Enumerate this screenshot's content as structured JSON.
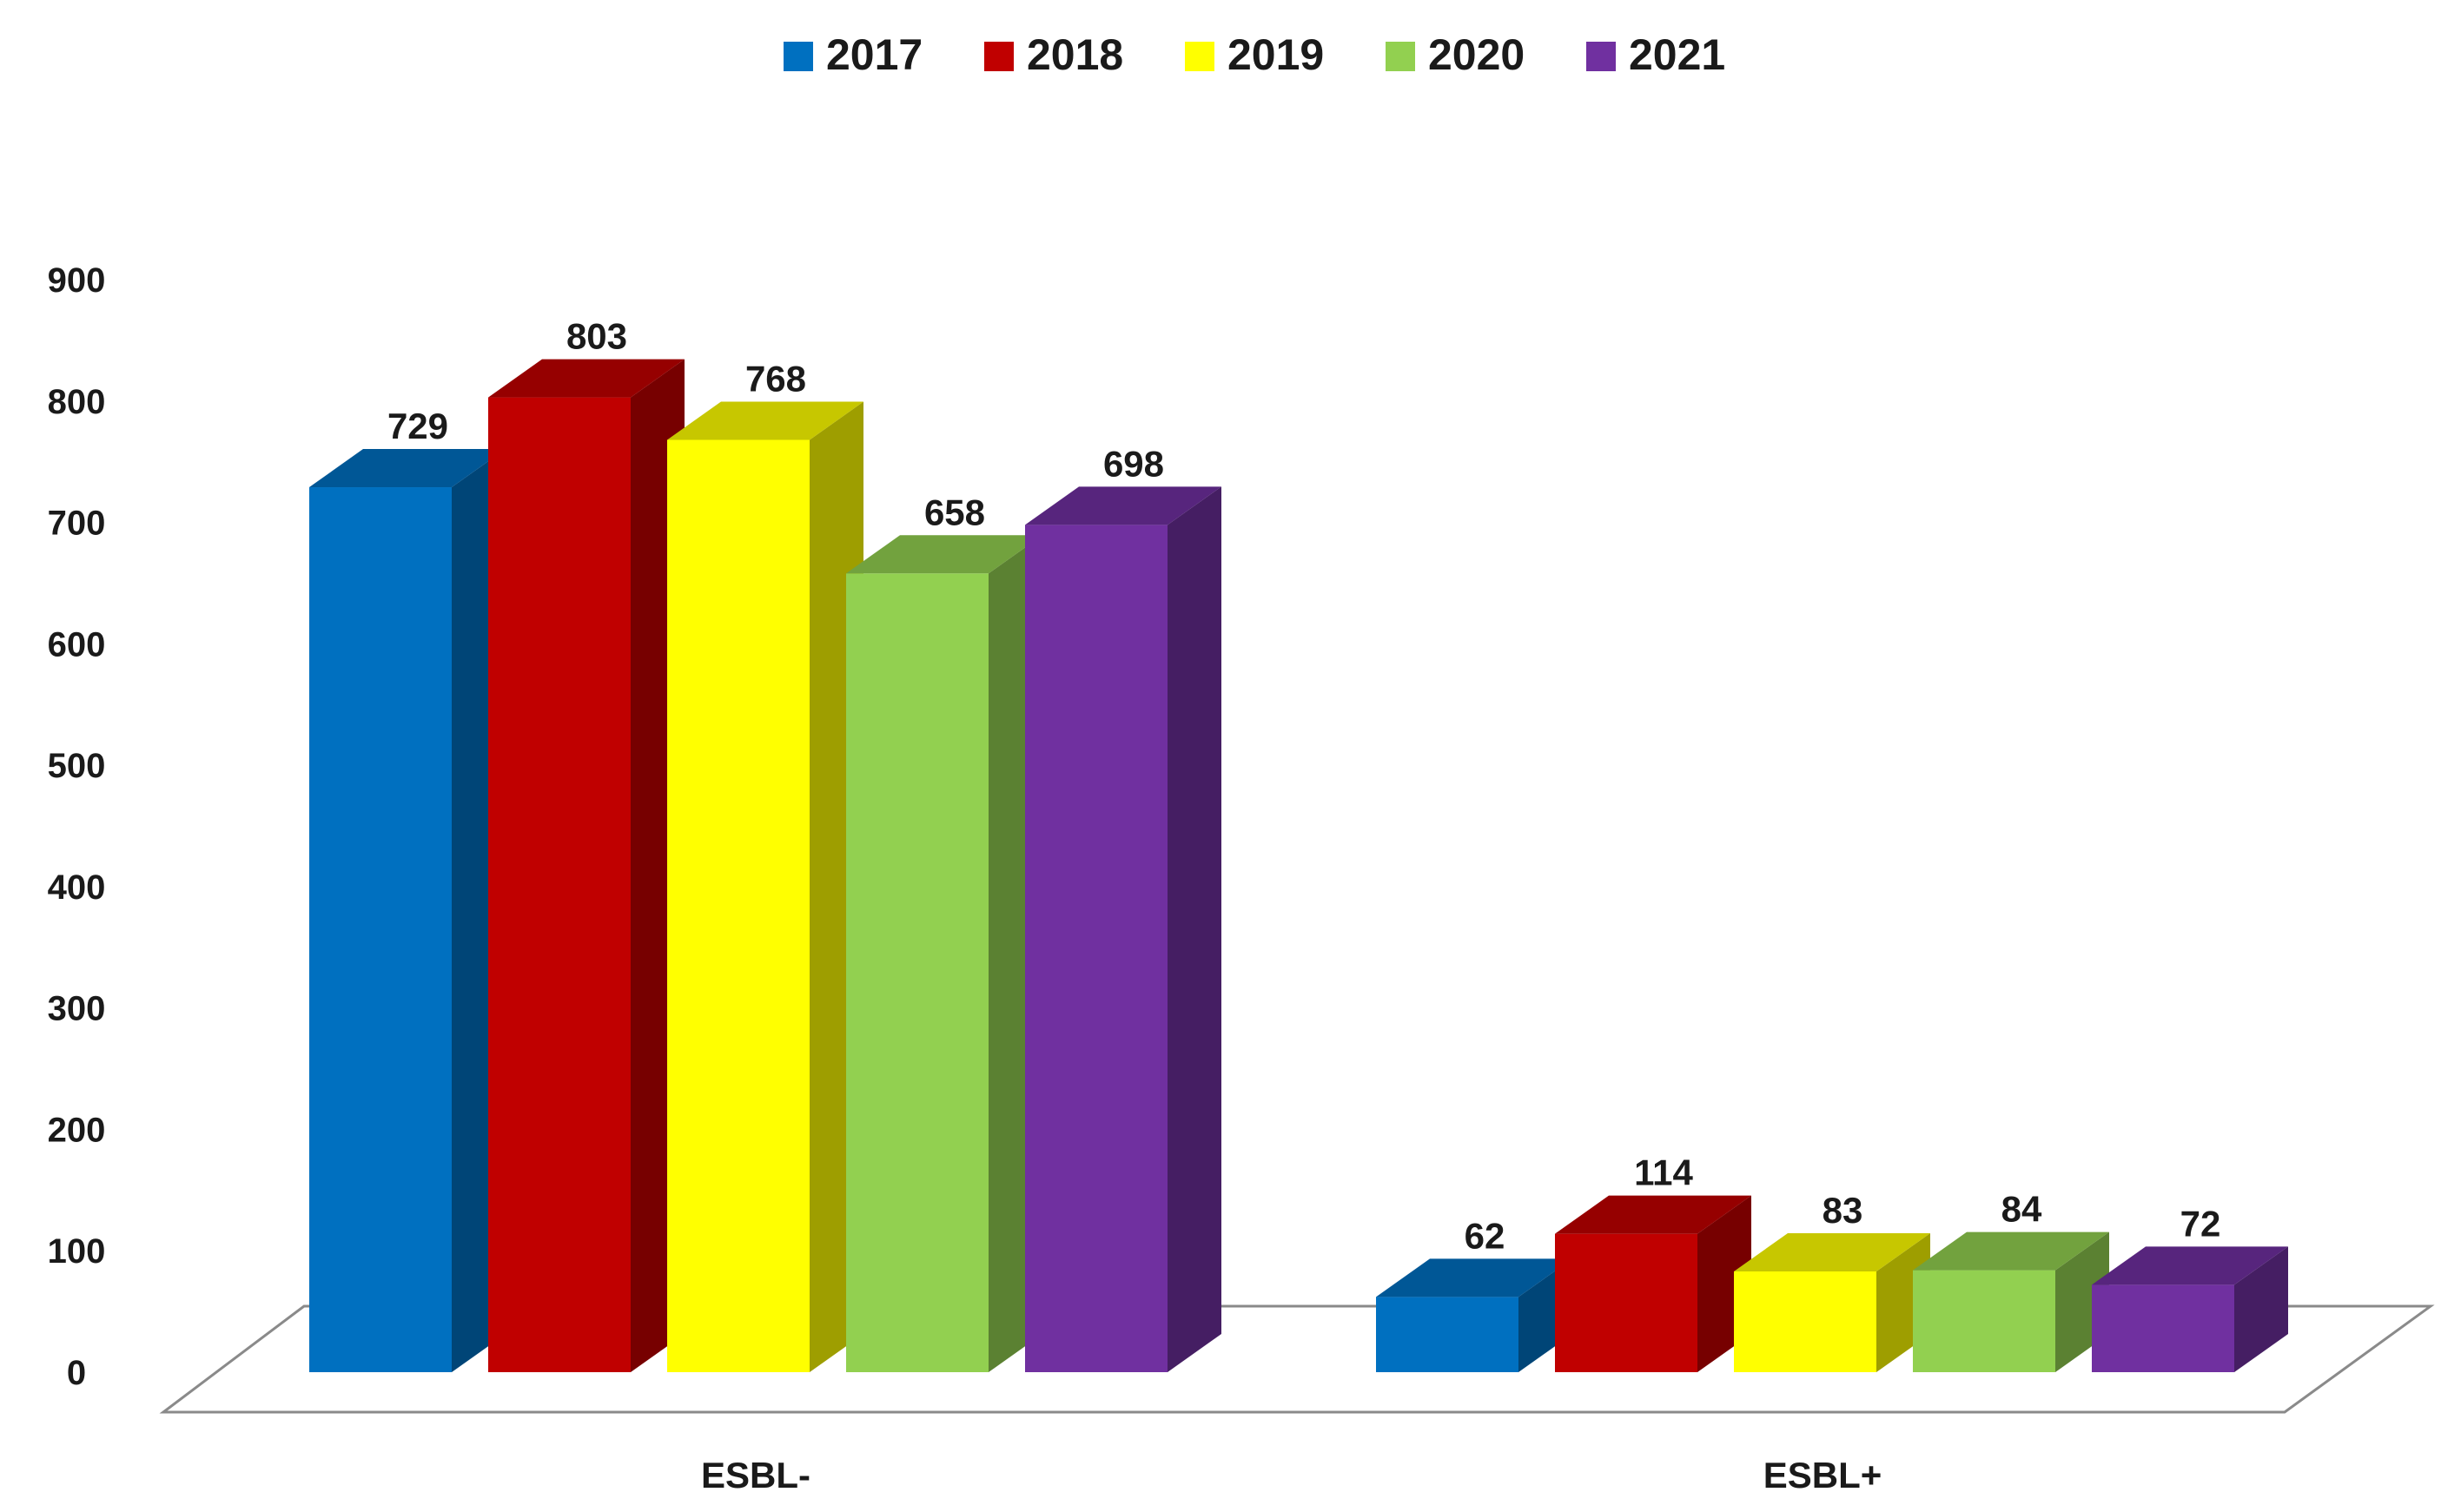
{
  "chart_data": {
    "type": "bar",
    "title": "",
    "xlabel": "",
    "ylabel": "",
    "categories": [
      "ESBL-",
      "ESBL+"
    ],
    "series": [
      {
        "name": "2017",
        "values": [
          729,
          62
        ],
        "color": "#0070C0"
      },
      {
        "name": "2018",
        "values": [
          803,
          114
        ],
        "color": "#C00000"
      },
      {
        "name": "2019",
        "values": [
          768,
          83
        ],
        "color": "#FFFF00"
      },
      {
        "name": "2020",
        "values": [
          658,
          84
        ],
        "color": "#92D050"
      },
      {
        "name": "2021",
        "values": [
          698,
          72
        ],
        "color": "#7030A0"
      }
    ],
    "ylim": [
      0,
      900
    ],
    "yticks": [
      "0",
      "100",
      "200",
      "300",
      "400",
      "500",
      "600",
      "700",
      "800",
      "900"
    ],
    "legend_position": "top-center",
    "grid": false,
    "style": "3d-clustered-column",
    "data_labels": true
  }
}
